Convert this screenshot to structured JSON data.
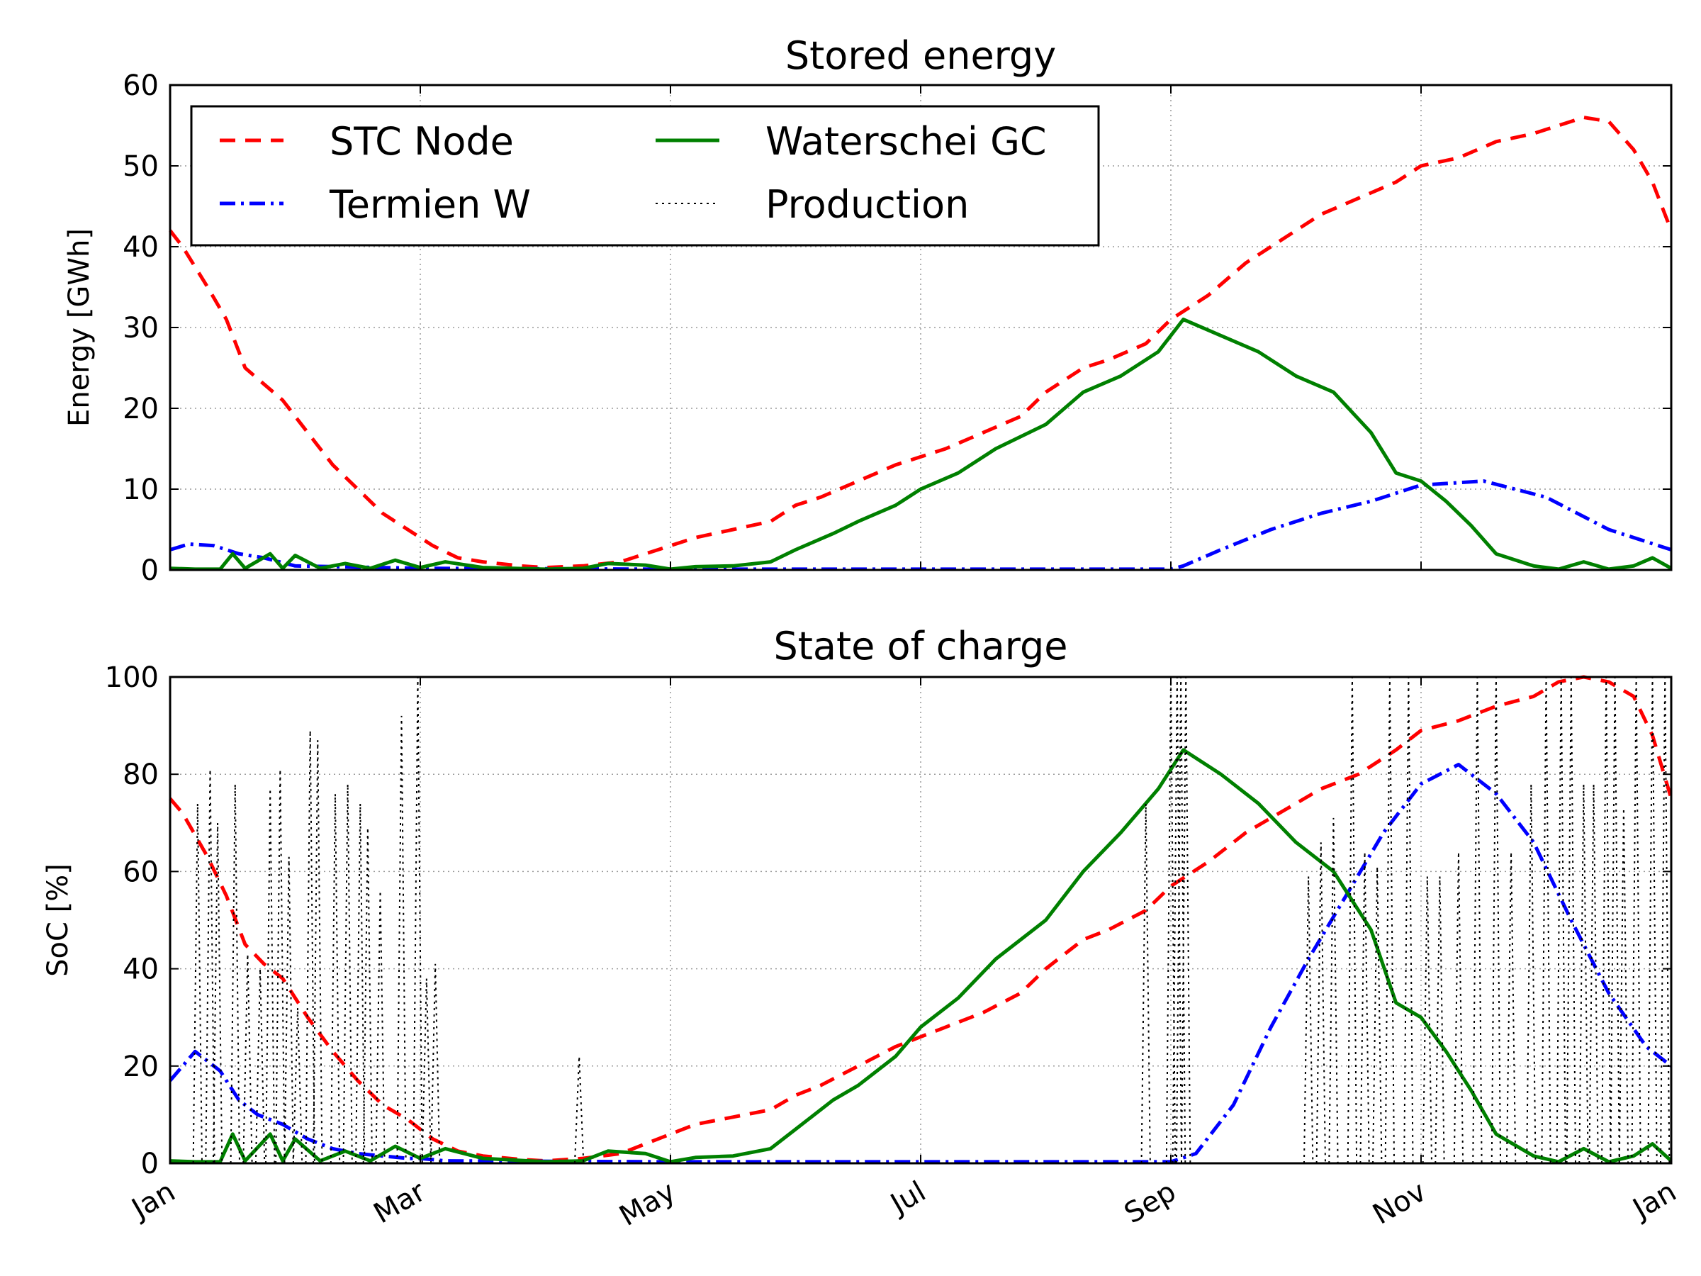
{
  "chart_data": [
    {
      "type": "line",
      "title": "Stored energy",
      "xlabel": "",
      "ylabel": "Energy [GWh]",
      "xlim": [
        0,
        12
      ],
      "ylim": [
        0,
        60
      ],
      "yticks": [
        0,
        10,
        20,
        30,
        40,
        50,
        60
      ],
      "xticks": [
        0,
        2,
        4,
        6,
        8,
        10,
        12
      ],
      "xticklabels": [
        "",
        "",
        "",
        "",
        "",
        "",
        ""
      ],
      "grid": true,
      "legend": "top-left, 2 columns",
      "series": [
        {
          "name": "STC Node",
          "color": "#ff0000",
          "style": "dashed",
          "x": [
            0,
            0.1,
            0.3,
            0.45,
            0.6,
            0.75,
            0.9,
            1.1,
            1.3,
            1.5,
            1.7,
            1.9,
            2.1,
            2.3,
            2.5,
            2.8,
            3.0,
            3.3,
            3.6,
            3.8,
            4.0,
            4.2,
            4.5,
            4.8,
            5.0,
            5.2,
            5.5,
            5.8,
            6.0,
            6.2,
            6.5,
            6.8,
            7.0,
            7.3,
            7.5,
            7.8,
            8.0,
            8.3,
            8.6,
            8.8,
            9.0,
            9.2,
            9.5,
            9.8,
            10.0,
            10.3,
            10.6,
            10.9,
            11.1,
            11.3,
            11.5,
            11.7,
            11.85,
            12.0
          ],
          "y": [
            42,
            40,
            35,
            31,
            25,
            23,
            21,
            17,
            13,
            10,
            7,
            5,
            3,
            1.5,
            1,
            0.5,
            0.3,
            0.5,
            1,
            2,
            3,
            4,
            5,
            6,
            8,
            9,
            11,
            13,
            14,
            15,
            17,
            19,
            22,
            25,
            26,
            28,
            31,
            34,
            38,
            40,
            42,
            44,
            46,
            48,
            50,
            51,
            53,
            54,
            55,
            56,
            55.5,
            52,
            48,
            42
          ]
        },
        {
          "name": "Termien W",
          "color": "#0000ff",
          "style": "dashdot",
          "x": [
            0,
            0.15,
            0.35,
            0.55,
            0.75,
            1.0,
            2.0,
            4.0,
            6.0,
            7.0,
            8.0,
            8.1,
            8.4,
            8.8,
            9.2,
            9.6,
            10.0,
            10.5,
            11.0,
            11.5,
            12.0
          ],
          "y": [
            2.5,
            3.2,
            3.0,
            2.0,
            1.5,
            0.5,
            0.2,
            0.1,
            0.1,
            0.1,
            0.1,
            0.5,
            2.5,
            5,
            7,
            8.5,
            10.5,
            11,
            9,
            5,
            2.5
          ]
        },
        {
          "name": "Waterschei GC",
          "color": "#008000",
          "style": "solid",
          "x": [
            0,
            0.2,
            0.4,
            0.5,
            0.6,
            0.8,
            0.9,
            1.0,
            1.2,
            1.4,
            1.6,
            1.8,
            2.0,
            2.2,
            2.5,
            3.0,
            3.3,
            3.5,
            3.8,
            4.0,
            4.2,
            4.5,
            4.8,
            5.0,
            5.3,
            5.5,
            5.8,
            6.0,
            6.3,
            6.6,
            7.0,
            7.3,
            7.6,
            7.9,
            8.1,
            8.4,
            8.7,
            9.0,
            9.3,
            9.6,
            9.8,
            10.0,
            10.2,
            10.4,
            10.6,
            10.9,
            11.1,
            11.3,
            11.5,
            11.7,
            11.85,
            12.0
          ],
          "y": [
            0.2,
            0.1,
            0.1,
            2.0,
            0.2,
            2.0,
            0.2,
            1.8,
            0.2,
            0.8,
            0.2,
            1.2,
            0.3,
            1.0,
            0.3,
            0.1,
            0.2,
            0.8,
            0.6,
            0.1,
            0.4,
            0.5,
            1.0,
            2.5,
            4.5,
            6,
            8,
            10,
            12,
            15,
            18,
            22,
            24,
            27,
            31,
            29,
            27,
            24,
            22,
            17,
            12,
            11,
            8.5,
            5.5,
            2,
            0.5,
            0.1,
            1.0,
            0.1,
            0.5,
            1.5,
            0.2
          ]
        },
        {
          "name": "Production",
          "color": "#000000",
          "style": "dotted",
          "x": [],
          "y": []
        }
      ]
    },
    {
      "type": "line",
      "title": "State of charge",
      "xlabel": "",
      "ylabel": "SoC [%]",
      "xlim": [
        0,
        12
      ],
      "ylim": [
        0,
        100
      ],
      "yticks": [
        0,
        20,
        40,
        60,
        80,
        100
      ],
      "xticks": [
        0,
        2,
        4,
        6,
        8,
        10,
        12
      ],
      "xticklabels": [
        "Jan",
        "Mar",
        "May",
        "Jul",
        "Sep",
        "Nov",
        "Jan"
      ],
      "grid": true,
      "series": [
        {
          "name": "STC Node",
          "color": "#ff0000",
          "style": "dashed",
          "x": [
            0,
            0.1,
            0.3,
            0.45,
            0.6,
            0.75,
            0.9,
            1.1,
            1.3,
            1.5,
            1.7,
            1.9,
            2.1,
            2.3,
            2.5,
            2.8,
            3.0,
            3.3,
            3.6,
            3.8,
            4.0,
            4.2,
            4.5,
            4.8,
            5.0,
            5.2,
            5.5,
            5.8,
            6.0,
            6.2,
            6.5,
            6.8,
            7.0,
            7.3,
            7.5,
            7.8,
            8.0,
            8.3,
            8.6,
            8.8,
            9.0,
            9.2,
            9.5,
            9.8,
            10.0,
            10.3,
            10.6,
            10.9,
            11.1,
            11.3,
            11.5,
            11.7,
            11.85,
            12.0
          ],
          "y": [
            75,
            72,
            63,
            55,
            45,
            41,
            38,
            30,
            23,
            17,
            12,
            9,
            5,
            2.5,
            1.5,
            0.8,
            0.5,
            1,
            2,
            4,
            6,
            8,
            9.5,
            11,
            14,
            16,
            20,
            24,
            26,
            28,
            31,
            35,
            40,
            46,
            48,
            52,
            57,
            62,
            68,
            71,
            74,
            77,
            80,
            85,
            89,
            91,
            94,
            96,
            99,
            100,
            99,
            96,
            88,
            75
          ]
        },
        {
          "name": "Termien W",
          "color": "#0000ff",
          "style": "dashdot",
          "x": [
            0,
            0.2,
            0.4,
            0.55,
            0.7,
            0.9,
            1.1,
            1.3,
            1.5,
            1.7,
            1.9,
            2.0,
            2.2,
            4.0,
            6.0,
            7.5,
            8.0,
            8.2,
            8.5,
            8.8,
            9.1,
            9.4,
            9.7,
            10.0,
            10.3,
            10.6,
            10.9,
            11.2,
            11.5,
            11.8,
            12.0
          ],
          "y": [
            17,
            23,
            19,
            13,
            10,
            8,
            5,
            3,
            2,
            1.5,
            1,
            1,
            0.5,
            0.3,
            0.3,
            0.3,
            0.3,
            2,
            12,
            28,
            42,
            55,
            68,
            78,
            82,
            76,
            66,
            50,
            35,
            24,
            20
          ]
        },
        {
          "name": "Waterschei GC",
          "color": "#008000",
          "style": "solid",
          "x": [
            0,
            0.2,
            0.4,
            0.5,
            0.6,
            0.8,
            0.9,
            1.0,
            1.2,
            1.4,
            1.6,
            1.8,
            2.0,
            2.2,
            2.5,
            3.0,
            3.3,
            3.5,
            3.8,
            4.0,
            4.2,
            4.5,
            4.8,
            5.0,
            5.3,
            5.5,
            5.8,
            6.0,
            6.3,
            6.6,
            7.0,
            7.3,
            7.6,
            7.9,
            8.1,
            8.4,
            8.7,
            9.0,
            9.3,
            9.6,
            9.8,
            10.0,
            10.2,
            10.4,
            10.6,
            10.9,
            11.1,
            11.3,
            11.5,
            11.7,
            11.85,
            12.0
          ],
          "y": [
            0.5,
            0.3,
            0.3,
            6,
            0.5,
            6,
            0.5,
            5,
            0.5,
            2.5,
            0.5,
            3.5,
            1,
            3,
            1,
            0.3,
            0.5,
            2.5,
            2,
            0.3,
            1.2,
            1.5,
            3,
            7,
            13,
            16,
            22,
            28,
            34,
            42,
            50,
            60,
            68,
            77,
            85,
            80,
            74,
            66,
            60,
            48,
            33,
            30,
            23,
            15,
            6,
            1.5,
            0.3,
            3,
            0.3,
            1.5,
            4,
            0.5
          ]
        },
        {
          "name": "Production",
          "color": "#000000",
          "style": "dotted",
          "x": [
            0.22,
            0.32,
            0.38,
            0.52,
            0.62,
            0.72,
            0.8,
            0.88,
            0.95,
            1.02,
            1.12,
            1.18,
            1.32,
            1.42,
            1.52,
            1.58,
            1.68,
            1.85,
            1.98,
            2.05,
            2.12,
            3.27,
            7.8,
            8.0,
            8.05,
            8.08,
            8.12,
            9.1,
            9.2,
            9.3,
            9.45,
            9.55,
            9.65,
            9.75,
            9.9,
            10.05,
            10.15,
            10.3,
            10.45,
            10.6,
            10.72,
            10.88,
            11.0,
            11.12,
            11.2,
            11.3,
            11.38,
            11.48,
            11.55,
            11.62,
            11.72,
            11.85,
            11.95
          ],
          "y": [
            74,
            81,
            70,
            78,
            43,
            40,
            77,
            81,
            63,
            32,
            89,
            87,
            76,
            78,
            74,
            69,
            56,
            92,
            100,
            38,
            41,
            22,
            74,
            100,
            100,
            100,
            100,
            59,
            66,
            71,
            100,
            64,
            61,
            100,
            100,
            59,
            59,
            64,
            100,
            100,
            64,
            78,
            100,
            100,
            100,
            78,
            78,
            100,
            100,
            73,
            100,
            100,
            100
          ]
        }
      ]
    }
  ]
}
